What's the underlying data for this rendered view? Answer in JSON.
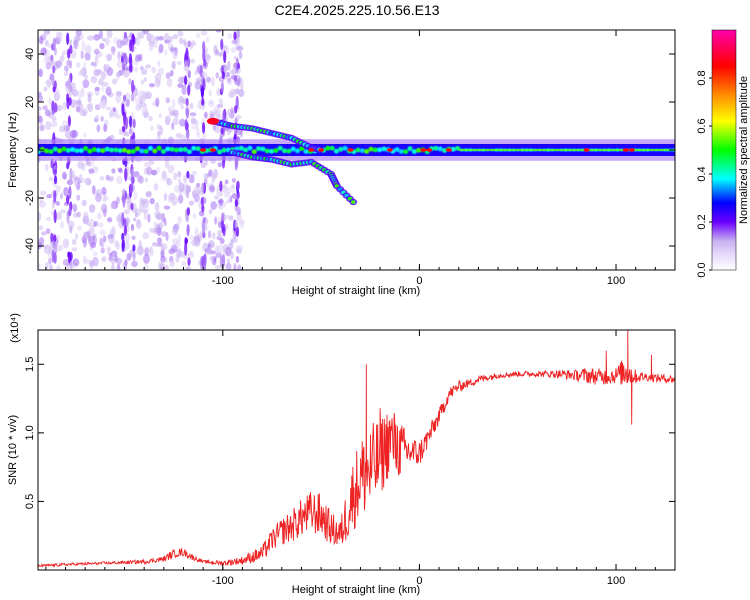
{
  "figure_title": "C2E4.2025.225.10.56.E13",
  "colors": {
    "background": "#ffffff",
    "frame": "#000000",
    "snr_line": "#ee2222",
    "colormap": [
      "#ffffff",
      "#c9b2f0",
      "#6a00ff",
      "#0000ff",
      "#00ffff",
      "#00ff00",
      "#ffff00",
      "#ff8000",
      "#ff0000",
      "#ff00aa"
    ]
  },
  "chart_data": [
    {
      "type": "heatmap",
      "title": "C2E4.2025.225.10.56.E13",
      "xlabel": "Height of straight line (km)",
      "ylabel": "Frequency (Hz)",
      "xlim": [
        -194,
        130
      ],
      "ylim": [
        -50,
        50
      ],
      "x_ticks": [
        -100,
        0,
        100
      ],
      "y_ticks": [
        -40,
        -20,
        0,
        20,
        40
      ],
      "grid": false,
      "colorbar": {
        "label": "Normalized spectral amplitude",
        "range": [
          0,
          1
        ],
        "ticks": [
          0.0,
          0.2,
          0.4,
          0.6,
          0.8
        ]
      },
      "features": {
        "main_band_frequency_hz": 0,
        "main_band_half_width_hz": 2.5,
        "wide_noise_region_km": [
          -194,
          -90
        ],
        "vertical_streaks_km": [
          -186,
          -178,
          -150,
          -146,
          -118,
          -110,
          -100,
          -93
        ],
        "branch_upper": [
          [
            -105,
            12
          ],
          [
            -95,
            10
          ],
          [
            -85,
            9
          ],
          [
            -75,
            7
          ],
          [
            -65,
            5
          ],
          [
            -55,
            1
          ],
          [
            -50,
            0
          ]
        ],
        "branch_lower": [
          [
            -95,
            -1
          ],
          [
            -85,
            -3
          ],
          [
            -75,
            -4
          ],
          [
            -65,
            -6
          ],
          [
            -55,
            -5
          ],
          [
            -45,
            -10
          ],
          [
            -42,
            -15
          ],
          [
            -32,
            -23
          ]
        ],
        "hotspots_km": [
          -110,
          -105,
          -55,
          -50,
          -35,
          -15,
          2,
          5,
          15,
          85,
          105,
          108
        ]
      }
    },
    {
      "type": "line",
      "xlabel": "Height of straight line (km)",
      "ylabel": "SNR (10 * v/v)",
      "y_multiplier": "(x10⁴)",
      "xlim": [
        -194,
        130
      ],
      "ylim": [
        0,
        1.75
      ],
      "x_ticks": [
        -100,
        0,
        100
      ],
      "y_ticks": [
        0.5,
        1.0,
        1.5
      ],
      "y_tick_labels": [
        "0.5",
        "1.0",
        "1.5"
      ],
      "grid": false,
      "series": [
        {
          "x": [
            -194,
            -180,
            -160,
            -140,
            -130,
            -125,
            -120,
            -115,
            -110,
            -100,
            -90,
            -80,
            -75,
            -70,
            -65,
            -60,
            -55,
            -50,
            -45,
            -40,
            -35,
            -30,
            -25,
            -20,
            -15,
            -10,
            -5,
            0,
            5,
            10,
            15,
            20,
            25,
            30,
            40,
            50,
            60,
            70,
            80,
            85,
            90,
            95,
            100,
            105,
            110,
            115,
            120,
            130
          ],
          "y": [
            0.03,
            0.04,
            0.05,
            0.06,
            0.08,
            0.12,
            0.13,
            0.09,
            0.06,
            0.05,
            0.07,
            0.12,
            0.22,
            0.28,
            0.32,
            0.38,
            0.42,
            0.4,
            0.3,
            0.26,
            0.5,
            0.68,
            0.72,
            0.82,
            0.96,
            0.88,
            0.86,
            0.85,
            0.98,
            1.12,
            1.28,
            1.34,
            1.36,
            1.39,
            1.42,
            1.43,
            1.43,
            1.43,
            1.42,
            1.42,
            1.41,
            1.41,
            1.42,
            1.45,
            1.41,
            1.41,
            1.4,
            1.39
          ],
          "noise_amplitude": [
            0.01,
            0.01,
            0.01,
            0.015,
            0.02,
            0.03,
            0.03,
            0.02,
            0.01,
            0.02,
            0.03,
            0.06,
            0.08,
            0.1,
            0.12,
            0.14,
            0.16,
            0.16,
            0.12,
            0.12,
            0.26,
            0.3,
            0.34,
            0.3,
            0.26,
            0.22,
            0.12,
            0.1,
            0.08,
            0.06,
            0.05,
            0.04,
            0.03,
            0.03,
            0.02,
            0.02,
            0.02,
            0.03,
            0.04,
            0.06,
            0.06,
            0.06,
            0.06,
            0.12,
            0.05,
            0.03,
            0.03,
            0.03
          ],
          "spikes": [
            [
              95,
              1.6
            ],
            [
              106,
              1.75
            ],
            [
              108,
              1.06
            ],
            [
              118,
              1.57
            ],
            [
              -27,
              1.5
            ],
            [
              -20,
              1.18
            ],
            [
              -12,
              1.06
            ]
          ]
        }
      ]
    }
  ]
}
